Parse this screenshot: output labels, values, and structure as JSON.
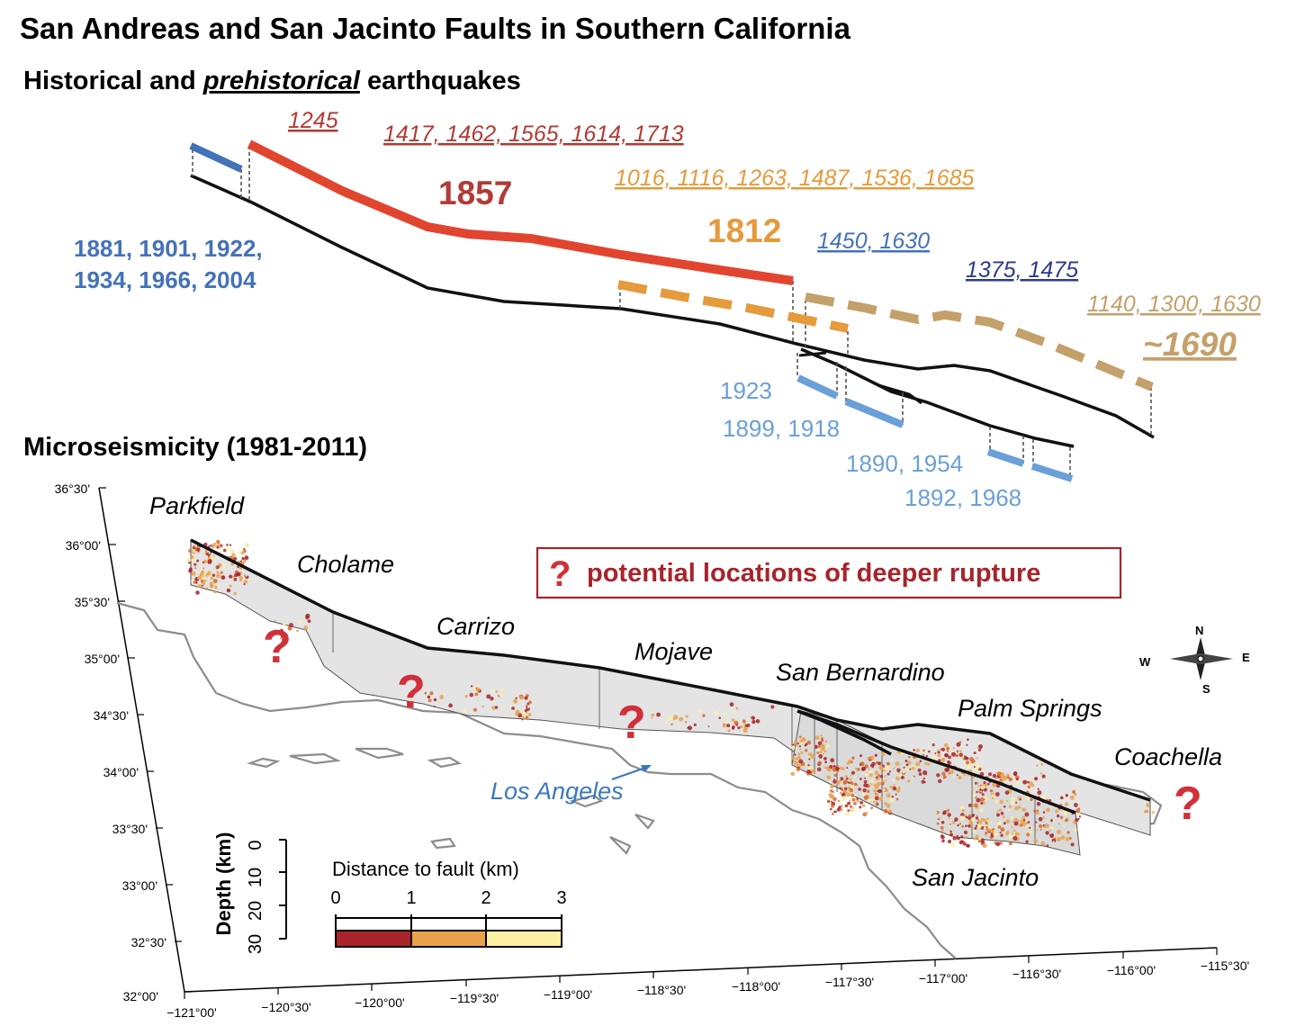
{
  "title": "San Andreas and San Jacinto Faults in Southern California",
  "subtitle": {
    "prefix": "Historical and ",
    "emph": "prehistorical",
    "suffix": " earthquakes"
  },
  "micro_title": "Microseismicity (1981-2011)",
  "historical_labels": {
    "parkfield_prehist": "1245",
    "carrizo_prehist": "1417, 1462, 1565, 1614, 1713",
    "fort_tejon": "1857",
    "parkfield_hist_1": "1881, 1901, 1922,",
    "parkfield_hist_2": "1934, 1966, 2004",
    "mojave_prehist": "1016, 1116, 1263, 1487, 1536, 1685",
    "wrightwood": "1812",
    "sb_prehist": "1450, 1630",
    "sj_prehist": "1375, 1475",
    "coachella_prehist": "1140, 1300, 1630",
    "coachella": "~1690",
    "sj_1923": "1923",
    "sj_1899": "1899, 1918",
    "sj_1890": "1890, 1954",
    "sj_1892": "1892, 1968"
  },
  "places": {
    "parkfield": "Parkfield",
    "cholame": "Cholame",
    "carrizo": "Carrizo",
    "mojave": "Mojave",
    "san_bernardino": "San Bernardino",
    "palm_springs": "Palm Springs",
    "coachella": "Coachella",
    "san_jacinto": "San Jacinto",
    "los_angeles": "Los Angeles"
  },
  "callout": {
    "mark": "?",
    "text": "potential locations of deeper rupture"
  },
  "question_mark": "?",
  "compass": {
    "n": "N",
    "s": "S",
    "e": "E",
    "w": "W"
  },
  "lat_ticks": [
    "36°30'",
    "36°00'",
    "35°30'",
    "35°00'",
    "34°30'",
    "34°00'",
    "33°30'",
    "33°00'",
    "32°30'",
    "32°00'"
  ],
  "lon_ticks": [
    "−121°00'",
    "−120°30'",
    "−120°00'",
    "−119°30'",
    "−119°00'",
    "−118°30'",
    "−118°00'",
    "−117°30'",
    "−117°00'",
    "−116°30'",
    "−116°00'",
    "−115°30'"
  ],
  "depth_axis": {
    "label": "Depth (km)",
    "ticks": [
      "0",
      "10",
      "20",
      "30"
    ]
  },
  "distance_legend": {
    "title": "Distance to fault (km)",
    "ticks": [
      "0",
      "1",
      "2",
      "3"
    ],
    "colors": [
      "#a8242b",
      "#e9a24b",
      "#fdf0a4"
    ]
  },
  "colors": {
    "red": "#e2452f",
    "orange": "#e59a3c",
    "blue": "#4472b8",
    "light_blue": "#6a9fd8",
    "tan": "#c4a06a",
    "navy": "#2e3a8c",
    "coast": "#8c8c8c"
  }
}
